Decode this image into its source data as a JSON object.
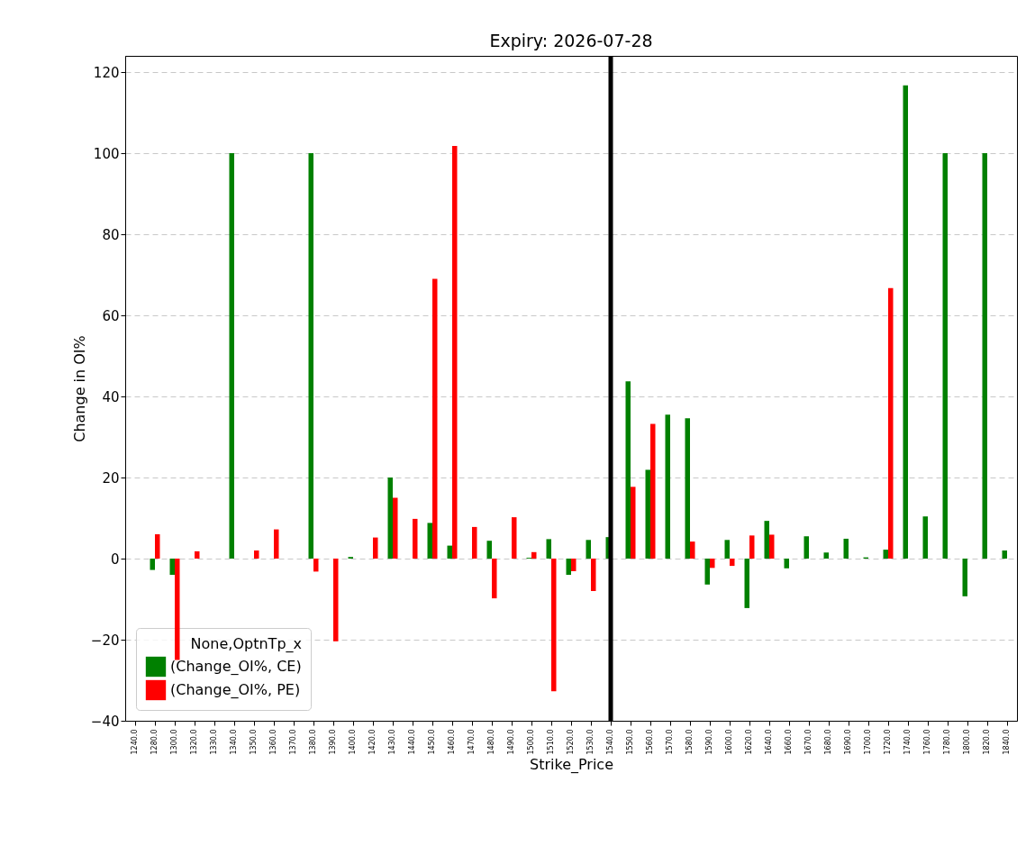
{
  "chart_data": {
    "type": "bar",
    "title": "Expiry: 2026-07-28",
    "xlabel": "Strike_Price",
    "ylabel": "Change in OI%",
    "legend_title": "None,OptnTp_x",
    "categories": [
      "1240.0",
      "1280.0",
      "1300.0",
      "1320.0",
      "1330.0",
      "1340.0",
      "1350.0",
      "1360.0",
      "1370.0",
      "1380.0",
      "1390.0",
      "1400.0",
      "1420.0",
      "1430.0",
      "1440.0",
      "1450.0",
      "1460.0",
      "1470.0",
      "1480.0",
      "1490.0",
      "1500.0",
      "1510.0",
      "1520.0",
      "1530.0",
      "1540.0",
      "1550.0",
      "1560.0",
      "1570.0",
      "1580.0",
      "1590.0",
      "1600.0",
      "1620.0",
      "1640.0",
      "1660.0",
      "1670.0",
      "1680.0",
      "1690.0",
      "1700.0",
      "1720.0",
      "1740.0",
      "1760.0",
      "1780.0",
      "1800.0",
      "1820.0",
      "1840.0"
    ],
    "series": [
      {
        "name": "(Change_OI%, CE)",
        "color": "#008000",
        "values": [
          0,
          -2.8,
          -4,
          0,
          0,
          100,
          0,
          0,
          0,
          100,
          0,
          0.4,
          0,
          20,
          0,
          8.8,
          3.2,
          0,
          4.4,
          0,
          0.2,
          4.8,
          -4,
          4.6,
          5.3,
          43.7,
          21.9,
          35.5,
          34.6,
          -6.4,
          4.6,
          -12.2,
          9.3,
          -2.4,
          5.5,
          1.5,
          4.9,
          0.3,
          2.2,
          116.7,
          10.4,
          100,
          -9.3,
          100,
          2
        ]
      },
      {
        "name": "(Change_OI%, PE)",
        "color": "#ff0000",
        "values": [
          0,
          6,
          -25,
          1.8,
          0,
          0,
          2,
          7.2,
          0,
          -3.2,
          -20.4,
          0,
          5.2,
          15,
          9.8,
          69,
          101.8,
          7.8,
          -9.8,
          10.2,
          1.6,
          -32.7,
          -3.1,
          -8,
          0,
          17.7,
          33.2,
          0,
          4.2,
          -2.3,
          -1.8,
          5.7,
          5.9,
          0,
          0,
          0,
          0,
          0,
          66.7,
          0,
          0,
          0,
          0,
          0,
          0
        ]
      }
    ],
    "ylim": [
      -40,
      124
    ],
    "yticks": [
      -40,
      -20,
      0,
      20,
      40,
      60,
      80,
      100,
      120
    ],
    "grid": "y",
    "legend": "bottom left",
    "ref_lines": [
      {
        "axis": "x",
        "value": "1540.0",
        "color": "#000000"
      }
    ]
  }
}
